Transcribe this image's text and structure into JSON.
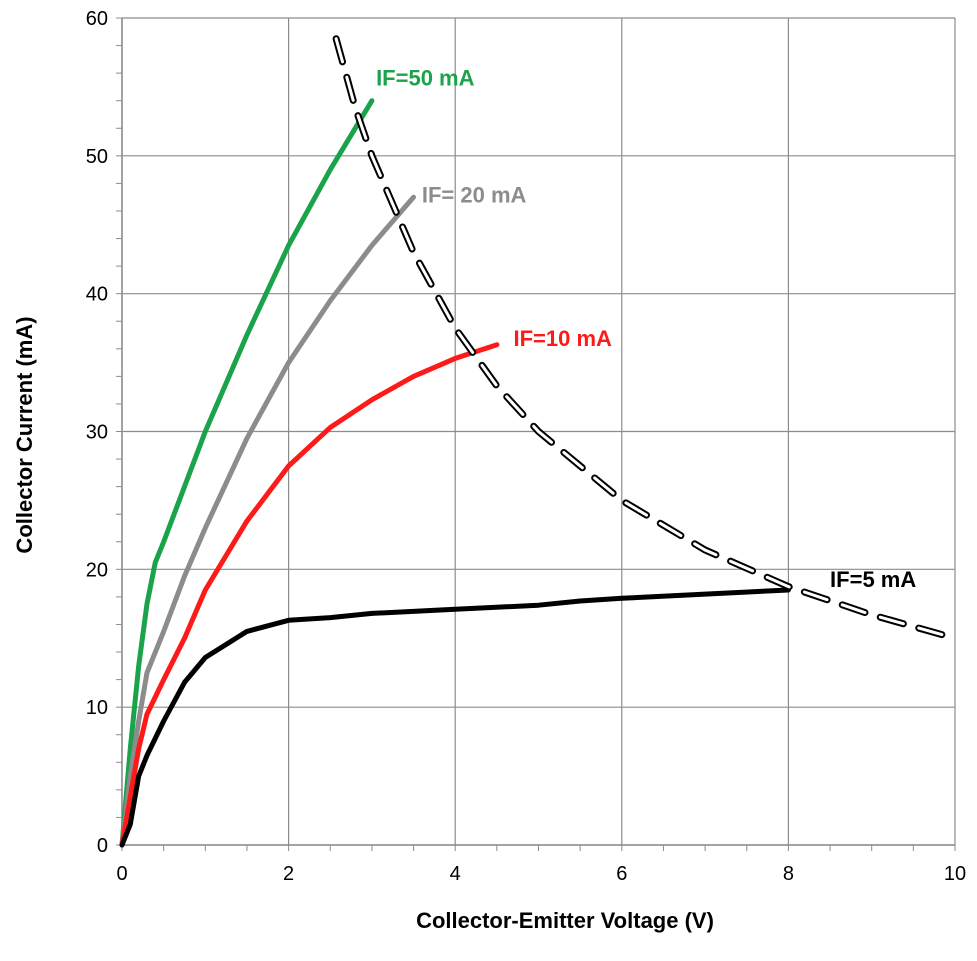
{
  "chart_data": {
    "type": "line",
    "title": "",
    "xlabel": "Collector-Emitter Voltage (V)",
    "ylabel": "Collector Current  (mA)",
    "xlim": [
      0,
      10
    ],
    "ylim": [
      0,
      60
    ],
    "x_ticks": [
      "0",
      "2",
      "4",
      "6",
      "8",
      "10"
    ],
    "y_ticks": [
      "0",
      "10",
      "20",
      "30",
      "40",
      "50",
      "60"
    ],
    "grid": true,
    "legend": "none",
    "series": [
      {
        "name": "IF=50 mA",
        "color": "#1aa34a",
        "style": "solid",
        "x": [
          0,
          0.1,
          0.2,
          0.3,
          0.4,
          0.5,
          0.75,
          1.0,
          1.5,
          2.0,
          2.5,
          3.0
        ],
        "y": [
          0,
          7,
          13,
          17.5,
          20.5,
          22,
          26,
          30,
          37,
          43.5,
          49,
          54
        ]
      },
      {
        "name": "IF= 20 mA",
        "color": "#8c8c8c",
        "style": "solid",
        "x": [
          0,
          0.1,
          0.2,
          0.3,
          0.5,
          0.75,
          1.0,
          1.5,
          2.0,
          2.5,
          3.0,
          3.5
        ],
        "y": [
          0,
          5,
          9,
          12.5,
          15.5,
          19.5,
          23,
          29.5,
          35,
          39.5,
          43.5,
          47
        ]
      },
      {
        "name": "IF=10 mA",
        "color": "#ff1a1a",
        "style": "solid",
        "x": [
          0,
          0.1,
          0.2,
          0.3,
          0.5,
          0.75,
          1.0,
          1.5,
          2.0,
          2.5,
          3.0,
          3.5,
          4.0,
          4.5
        ],
        "y": [
          0,
          3.5,
          7,
          9.5,
          12,
          15,
          18.5,
          23.5,
          27.5,
          30.3,
          32.3,
          34,
          35.3,
          36.3
        ]
      },
      {
        "name": "IF=5 mA",
        "color": "#000000",
        "style": "solid",
        "x": [
          0,
          0.1,
          0.2,
          0.3,
          0.5,
          0.75,
          1.0,
          1.5,
          2.0,
          2.5,
          3.0,
          4.0,
          5.0,
          5.5,
          6.0,
          7.0,
          8.0
        ],
        "y": [
          0,
          1.5,
          5,
          6.5,
          9,
          11.8,
          13.6,
          15.5,
          16.3,
          16.5,
          16.8,
          17.1,
          17.4,
          17.7,
          17.9,
          18.2,
          18.5
        ]
      },
      {
        "color": "#000000",
        "style": "dashed",
        "x": [
          2.57,
          2.8,
          3.0,
          3.5,
          4.0,
          4.5,
          5.0,
          6.0,
          7.0,
          8.0,
          9.0,
          10.0
        ],
        "y": [
          58.5,
          53.5,
          50,
          43,
          37.5,
          33.3,
          30,
          25,
          21.4,
          18.75,
          16.7,
          15
        ]
      }
    ],
    "annotations": [
      {
        "text": "IF=50 mA",
        "x": 3.05,
        "y": 55.7,
        "color": "#1aa34a"
      },
      {
        "text": "IF= 20 mA",
        "x": 3.6,
        "y": 47.2,
        "color": "#8c8c8c"
      },
      {
        "text": "IF=10 mA",
        "x": 4.7,
        "y": 36.8,
        "color": "#ff1a1a"
      },
      {
        "text": "IF=5 mA",
        "x": 8.5,
        "y": 19.3,
        "color": "#000000"
      }
    ]
  }
}
